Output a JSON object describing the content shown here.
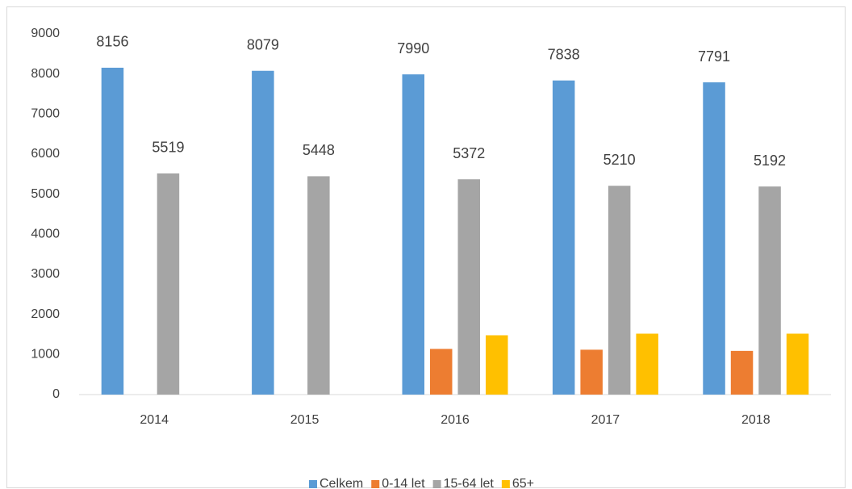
{
  "chart_data": {
    "type": "bar",
    "categories": [
      "2014",
      "2015",
      "2016",
      "2017",
      "2018"
    ],
    "series": [
      {
        "name": "Celkem",
        "color": "#5b9bd5",
        "values": [
          8156,
          8079,
          7990,
          7838,
          7791
        ],
        "data_labels": true
      },
      {
        "name": "0-14 let",
        "color": "#ed7d31",
        "values": [
          null,
          null,
          1140,
          1120,
          1090
        ],
        "data_labels": false
      },
      {
        "name": "15-64 let",
        "color": "#a5a5a5",
        "values": [
          5519,
          5448,
          5372,
          5210,
          5192
        ],
        "data_labels": true
      },
      {
        "name": "65+",
        "color": "#ffc000",
        "values": [
          null,
          null,
          1480,
          1520,
          1520
        ],
        "data_labels": false
      }
    ],
    "ylim": [
      0,
      9000
    ],
    "yticks": [
      0,
      1000,
      2000,
      3000,
      4000,
      5000,
      6000,
      7000,
      8000,
      9000
    ],
    "grid": false,
    "legend": "bottom"
  }
}
